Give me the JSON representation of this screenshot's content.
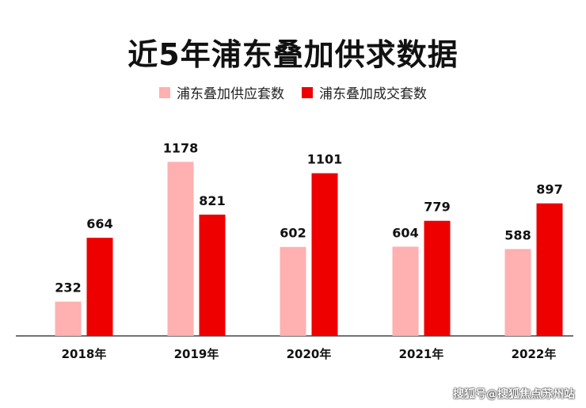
{
  "chart_data": {
    "type": "bar",
    "title": "近5年浦东叠加供求数据",
    "categories": [
      "2018年",
      "2019年",
      "2020年",
      "2021年",
      "2022年"
    ],
    "series": [
      {
        "name": "浦东叠加供应套数",
        "color": "#ffb0b0",
        "values": [
          232,
          1178,
          602,
          604,
          588
        ]
      },
      {
        "name": "浦东叠加成交套数",
        "color": "#ee0000",
        "values": [
          664,
          821,
          1101,
          779,
          897
        ]
      }
    ],
    "ylim": [
      0,
      1260
    ],
    "grid": false,
    "legend_position": "top-center",
    "xlabel": "",
    "ylabel": ""
  },
  "watermark": "搜狐号@搜狐焦点苏州站"
}
